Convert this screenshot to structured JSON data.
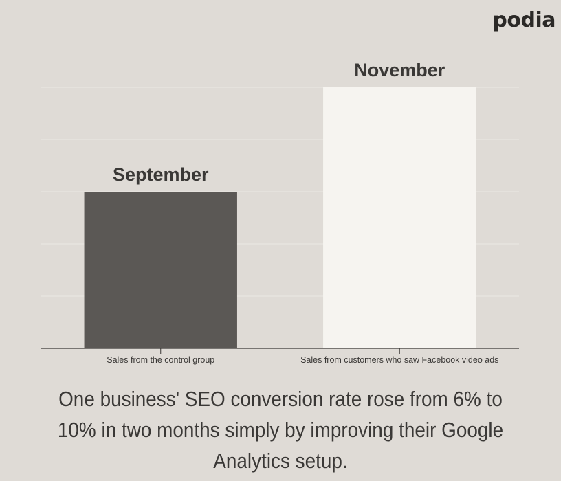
{
  "brand": {
    "logo_text": "podia"
  },
  "chart_data": {
    "type": "bar",
    "categories": [
      "Sales from the control group",
      "Sales from customers who saw Facebook video ads"
    ],
    "bar_labels": [
      "September",
      "November"
    ],
    "values": [
      6,
      10
    ],
    "ylim": [
      0,
      10
    ],
    "grid": true,
    "title": "",
    "xlabel": "",
    "ylabel": "",
    "colors": [
      "#5b5855",
      "#f6f4f0"
    ],
    "grid_color": "#ebe8e4",
    "axis_color": "#3a3836",
    "label_color": "#3a3836"
  },
  "caption": {
    "text": "One business' SEO conversion rate rose from 6% to 10% in two months simply by improving their Google Analytics setup."
  }
}
